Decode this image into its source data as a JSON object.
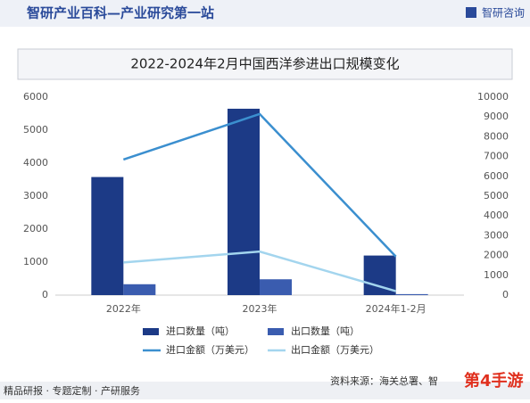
{
  "header": {
    "title": "智研产业百科—产业研究第一站",
    "logo": "智研咨询"
  },
  "chart_data": {
    "type": "bar",
    "title": "2022-2024年2月中国西洋参进出口规模变化",
    "categories": [
      "2022年",
      "2023年",
      "2024年1-2月"
    ],
    "series": [
      {
        "name": "进口数量（吨）",
        "type": "bar",
        "color": "#1c3a86",
        "values": [
          3580,
          5650,
          1200
        ]
      },
      {
        "name": "出口数量（吨）",
        "type": "bar",
        "color": "#3a5caf",
        "values": [
          330,
          480,
          30
        ]
      },
      {
        "name": "进口金额（万美元）",
        "type": "line",
        "axis": "y2",
        "color": "#3b8fcf",
        "values": [
          6850,
          9150,
          1950
        ]
      },
      {
        "name": "出口金额（万美元）",
        "type": "line",
        "axis": "y2",
        "color": "#a3d5ee",
        "values": [
          1650,
          2200,
          200
        ]
      }
    ],
    "ylim": [
      0,
      6000
    ],
    "yticks": [
      0,
      1000,
      2000,
      3000,
      4000,
      5000,
      6000
    ],
    "y2lim": [
      0,
      10000
    ],
    "y2ticks": [
      0,
      1000,
      2000,
      3000,
      4000,
      5000,
      6000,
      7000,
      8000,
      9000,
      10000
    ]
  },
  "footer": {
    "left": "精品研报 · 专题定制 · 产研服务",
    "source": "资料来源：海关总署、智",
    "watermark": "第4手游"
  }
}
